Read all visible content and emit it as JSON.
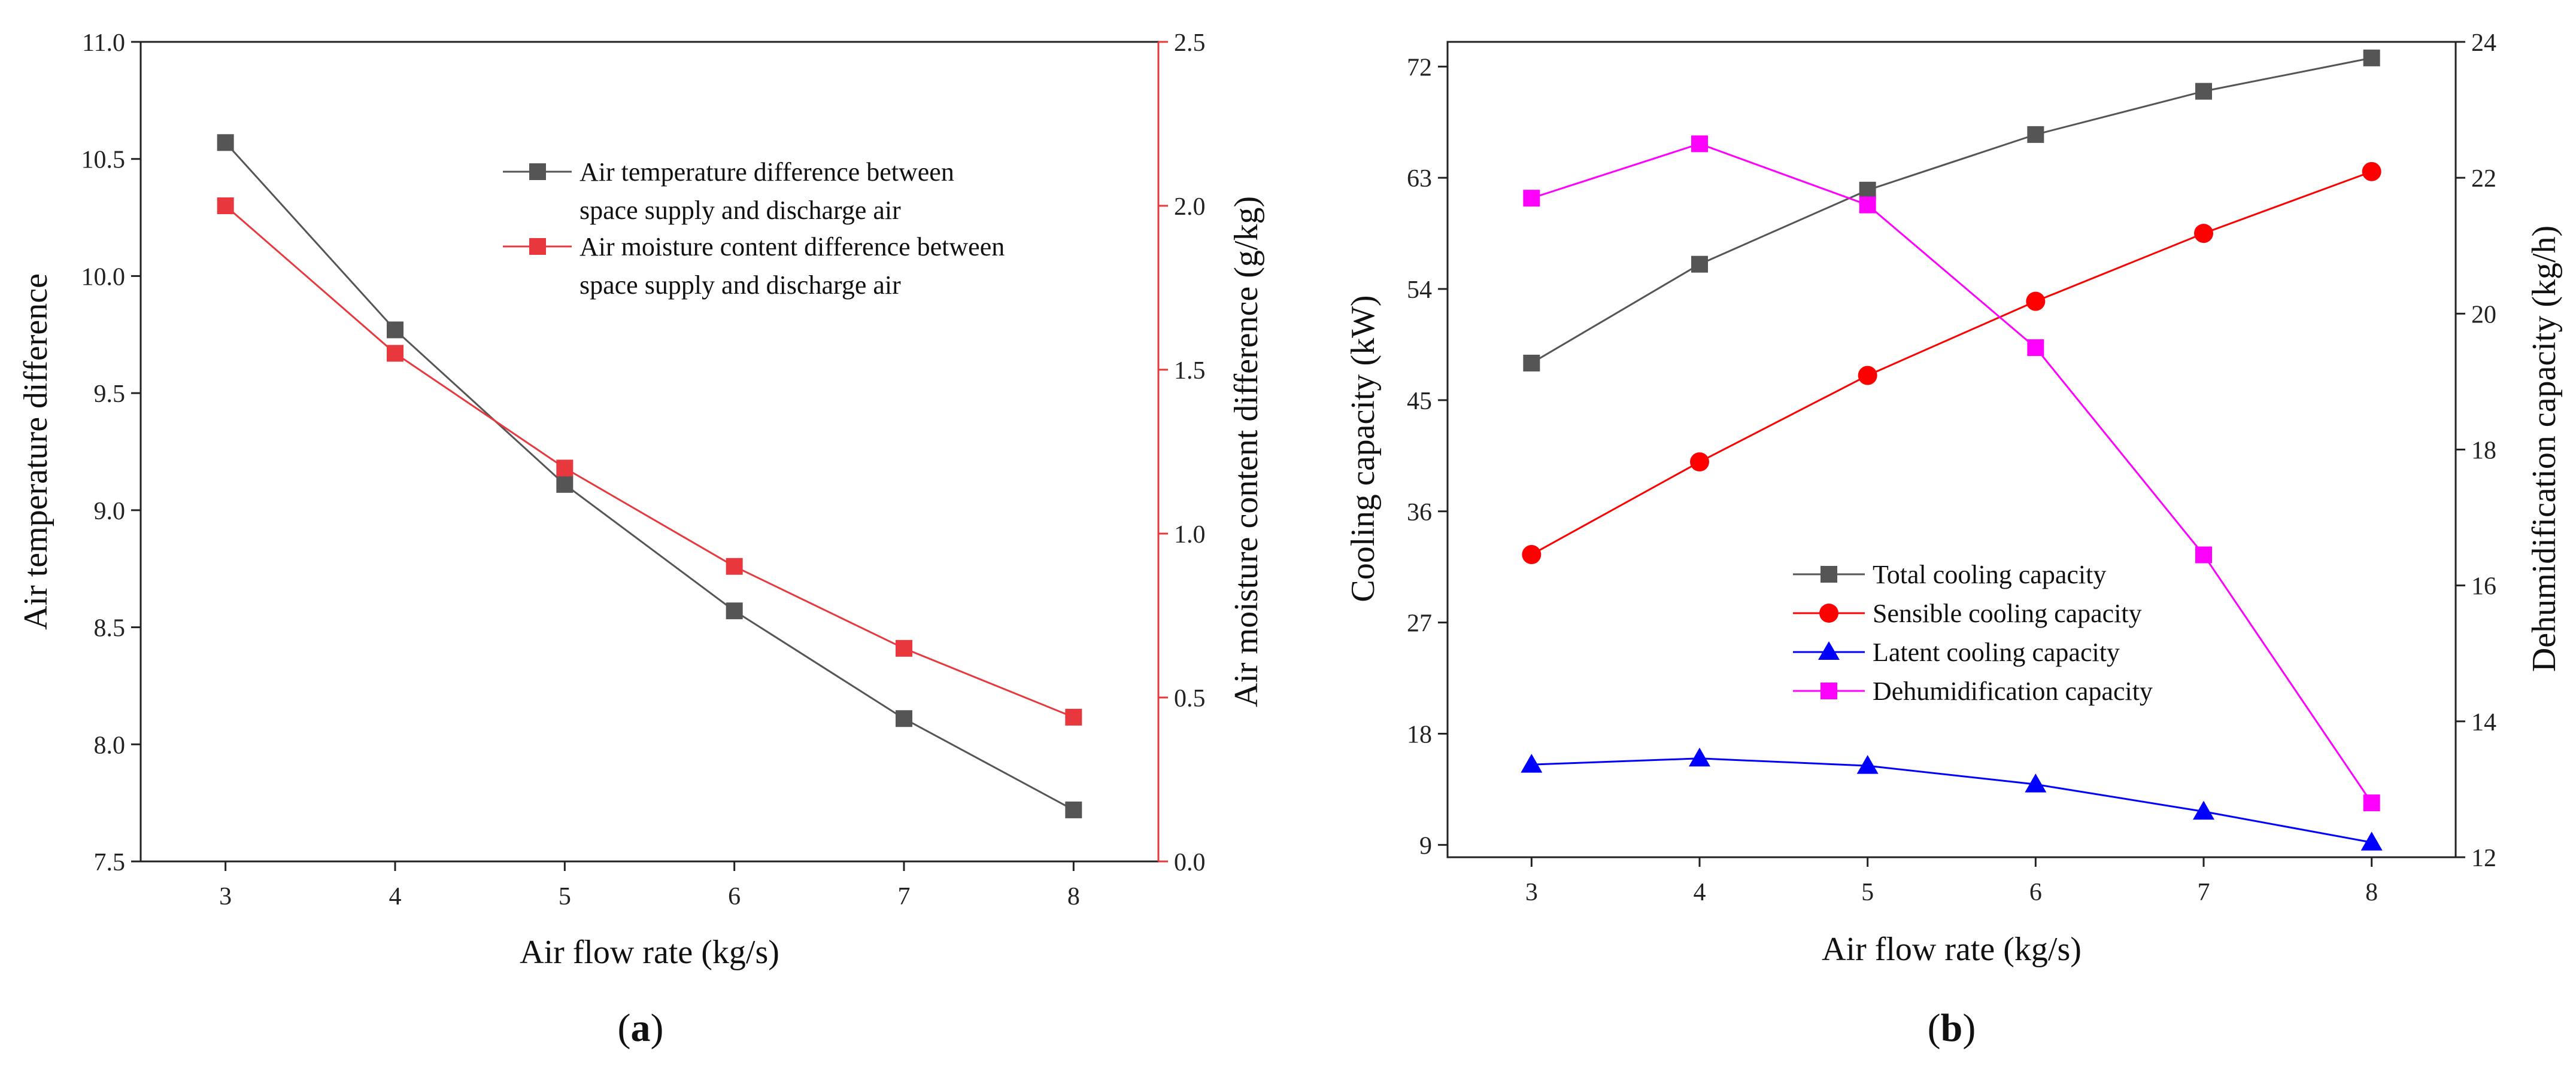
{
  "chart_data": [
    {
      "type": "line",
      "panel": "(a)",
      "panel_letter": "a",
      "xlabel": "Air flow rate (kg/s)",
      "ylabel": "Air temperature difference",
      "y2label": "Air moisture content difference (g/kg)",
      "x": [
        3,
        4,
        5,
        6,
        7,
        8
      ],
      "xlim": [
        2.5,
        8.5
      ],
      "xticks": [
        "3",
        "4",
        "5",
        "6",
        "7",
        "8"
      ],
      "ylim": [
        7.5,
        11.0
      ],
      "yticks": [
        "7.5",
        "8.0",
        "8.5",
        "9.0",
        "9.5",
        "10.0",
        "10.5",
        "11.0"
      ],
      "y2lim": [
        0.0,
        2.5
      ],
      "y2ticks": [
        "0.0",
        "0.5",
        "1.0",
        "1.5",
        "2.0",
        "2.5"
      ],
      "legend_position": "top-right",
      "series": [
        {
          "name_line1": "Air temperature difference between",
          "name_line2": "space supply and discharge air",
          "axis": "left",
          "marker": "square",
          "color": "#555555",
          "values": [
            10.57,
            9.77,
            9.11,
            8.57,
            8.11,
            7.72
          ]
        },
        {
          "name_line1": "Air moisture content difference between",
          "name_line2": "space supply and discharge air",
          "axis": "right",
          "marker": "square",
          "color": "#e8383d",
          "values": [
            2.0,
            1.55,
            1.2,
            0.9,
            0.65,
            0.44
          ]
        }
      ],
      "colors": {
        "right_axis": "#e8383d"
      }
    },
    {
      "type": "line",
      "panel": "(b)",
      "panel_letter": "b",
      "xlabel": "Air flow rate (kg/s)",
      "ylabel": "Cooling capacity (kW)",
      "y2label": "Dehumidification capacity (kg/h)",
      "x": [
        3,
        4,
        5,
        6,
        7,
        8
      ],
      "xlim": [
        2.5,
        8.5
      ],
      "xticks": [
        "3",
        "4",
        "5",
        "6",
        "7",
        "8"
      ],
      "ylim": [
        8,
        74
      ],
      "yticks": [
        "9",
        "18",
        "27",
        "36",
        "45",
        "54",
        "63",
        "72"
      ],
      "y2lim": [
        12,
        24
      ],
      "y2ticks": [
        "12",
        "14",
        "16",
        "18",
        "20",
        "22",
        "24"
      ],
      "legend_position": "lower-center",
      "series": [
        {
          "name": "Total cooling capacity",
          "axis": "left",
          "marker": "square",
          "color": "#555555",
          "values": [
            48.0,
            56.0,
            62.0,
            66.5,
            70.0,
            72.7
          ]
        },
        {
          "name": "Sensible cooling capacity",
          "axis": "left",
          "marker": "circle",
          "color": "#ff0000",
          "values": [
            32.5,
            40.0,
            47.0,
            53.0,
            58.5,
            63.5
          ]
        },
        {
          "name": "Latent cooling capacity",
          "axis": "left",
          "marker": "triangle",
          "color": "#0000ff",
          "values": [
            15.5,
            16.0,
            15.4,
            13.9,
            11.7,
            9.2
          ]
        },
        {
          "name": "Dehumidification capacity",
          "axis": "right",
          "marker": "square",
          "color": "#ff00ff",
          "values": [
            21.7,
            22.5,
            21.6,
            19.5,
            16.45,
            12.8
          ]
        }
      ]
    }
  ]
}
